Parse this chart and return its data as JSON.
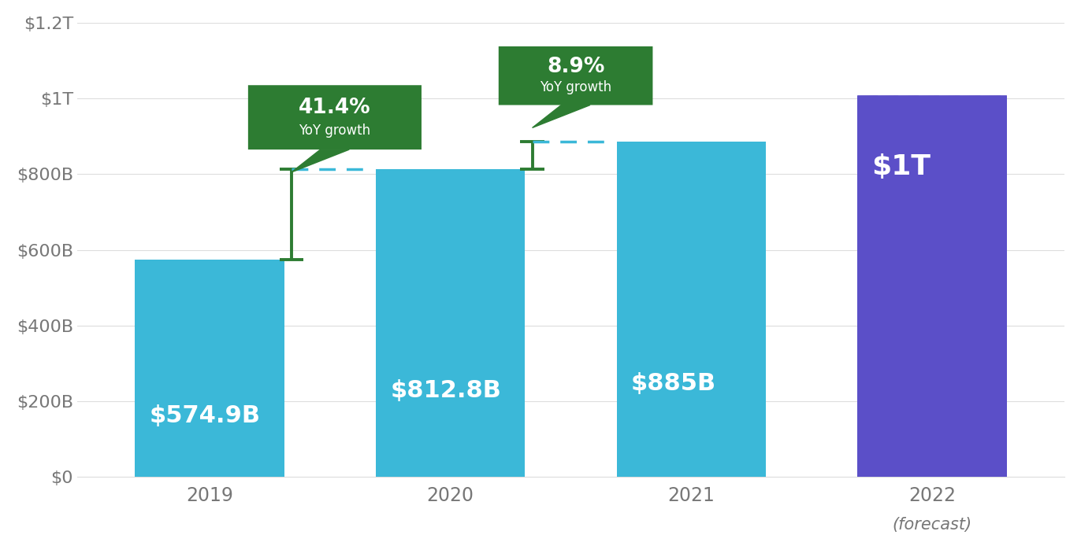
{
  "categories": [
    "2019",
    "2020",
    "2021",
    "2022"
  ],
  "cat_extra": [
    "",
    "",
    "",
    "(forecast)"
  ],
  "values": [
    574.9,
    812.8,
    885,
    1000
  ],
  "bar_labels": [
    "$574.9B",
    "$812.8B",
    "$885B",
    "$1T"
  ],
  "bar_color": "#3BB8D8",
  "stripe_color": "#5B4FC8",
  "background_color": "#ffffff",
  "ylim": [
    0,
    1200
  ],
  "yticks": [
    0,
    200,
    400,
    600,
    800,
    1000,
    1200
  ],
  "ytick_labels": [
    "$0",
    "$200B",
    "$400B",
    "$600B",
    "$800B",
    "$1T",
    "$1.2T"
  ],
  "grid_color": "#dddddd",
  "bar_label_fontsize": 22,
  "bar_label_color": "#ffffff",
  "axis_label_fontsize": 16,
  "axis_tick_color": "#777777",
  "annotation1_pct": "41.4%",
  "annotation1_sub": "YoY growth",
  "annotation2_pct": "8.9%",
  "annotation2_sub": "YoY growth",
  "annotation_bg_color": "#2D7C32",
  "annotation_text_color": "#ffffff",
  "bracket_color": "#2D7C32",
  "dashed_line_color": "#3BB8D8",
  "bar_width": 0.62
}
